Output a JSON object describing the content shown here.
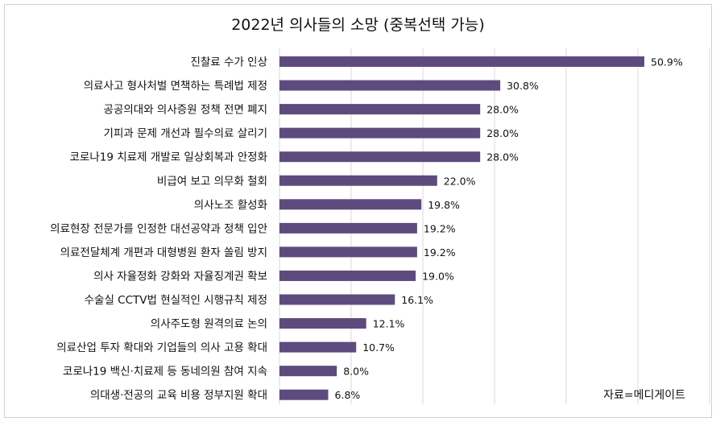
{
  "chart_data": {
    "type": "bar",
    "orientation": "horizontal",
    "title": "2022년 의사들의 소망 (중복선택 가능)",
    "categories": [
      "진찰료 수가 인상",
      "의료사고 형사처벌 면책하는 특례법 제정",
      "공공의대와 의사증원 정책 전면 폐지",
      "기피과 문제 개선과 필수의료 살리기",
      "코로나19 치료제 개발로 일상회복과 안정화",
      "비급여 보고 의무화 철회",
      "의사노조 활성화",
      "의료현장 전문가를 인정한 대선공약과 정책 입안",
      "의료전달체계 개편과 대형병원 환자 쏠림 방지",
      "의사 자율정화 강화와 자율징계권 확보",
      "수술실 CCTV법 현실적인 시행규칙 제정",
      "의사주도형 원격의료 논의",
      "의료산업 투자 확대와 기업들의 의사 고용 확대",
      "코로나19 백신·치료제 등 동네의원 참여 지속",
      "의대생·전공의 교육 비용 정부지원 확대"
    ],
    "values": [
      50.9,
      30.8,
      28.0,
      28.0,
      28.0,
      22.0,
      19.8,
      19.2,
      19.2,
      19.0,
      16.1,
      12.1,
      10.7,
      8.0,
      6.8
    ],
    "value_labels": [
      "50.9%",
      "30.8%",
      "28.0%",
      "28.0%",
      "28.0%",
      "22.0%",
      "19.8%",
      "19.2%",
      "19.2%",
      "19.0%",
      "16.1%",
      "12.1%",
      "10.7%",
      "8.0%",
      "6.8%"
    ],
    "xlim": [
      0,
      60
    ],
    "grid": true,
    "bar_color": "#5e4b7e",
    "grid_color": "#d9d9d9"
  },
  "source": "자료=메디게이트"
}
